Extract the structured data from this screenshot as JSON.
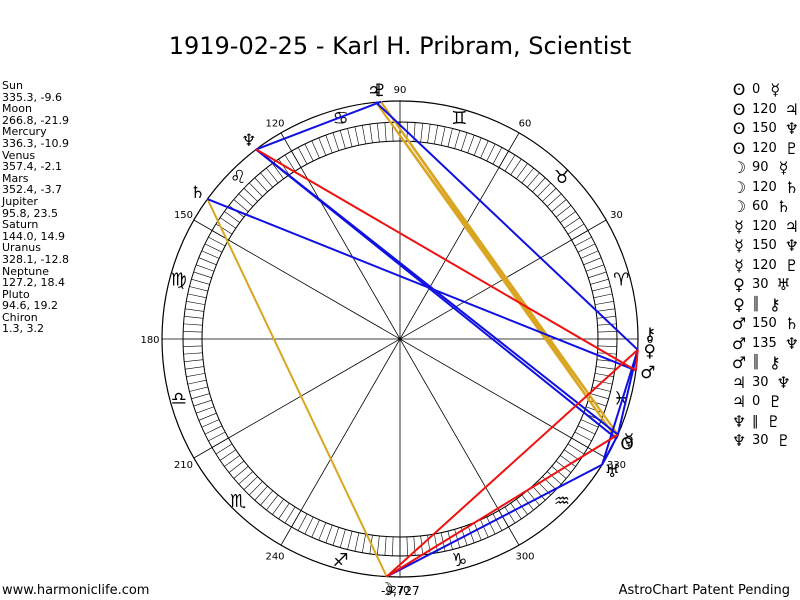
{
  "title": "1919-02-25 - Karl H. Pribram, Scientist",
  "planets": [
    {
      "name": "Sun",
      "coords": "335.3, -9.6",
      "glyph": "ʘ"
    },
    {
      "name": "Moon",
      "coords": "266.8, -21.9",
      "glyph": "☽"
    },
    {
      "name": "Mercury",
      "coords": "336.3, -10.9",
      "glyph": "☿"
    },
    {
      "name": "Venus",
      "coords": "357.4, -2.1",
      "glyph": "♀"
    },
    {
      "name": "Mars",
      "coords": "352.4, -3.7",
      "glyph": "♂"
    },
    {
      "name": "Jupiter",
      "coords": "95.8, 23.5",
      "glyph": "♃"
    },
    {
      "name": "Saturn",
      "coords": "144.0, 14.9",
      "glyph": "♄"
    },
    {
      "name": "Uranus",
      "coords": "328.1, -12.8",
      "glyph": "♅"
    },
    {
      "name": "Neptune",
      "coords": "127.2, 18.4",
      "glyph": "♆"
    },
    {
      "name": "Pluto",
      "coords": "94.6, 19.2",
      "glyph": "♇"
    },
    {
      "name": "Chiron",
      "coords": "1.3, 3.2",
      "glyph": "⚷"
    }
  ],
  "aspects": [
    {
      "p1": "ʘ",
      "value": "0",
      "p2": "☿"
    },
    {
      "p1": "ʘ",
      "value": "120",
      "p2": "♃"
    },
    {
      "p1": "ʘ",
      "value": "150",
      "p2": "♆"
    },
    {
      "p1": "ʘ",
      "value": "120",
      "p2": "♇"
    },
    {
      "p1": "☽",
      "value": "90",
      "p2": "☿"
    },
    {
      "p1": "☽",
      "value": "120",
      "p2": "♄"
    },
    {
      "p1": "☽",
      "value": "60",
      "p2": "♄"
    },
    {
      "p1": "☿",
      "value": "120",
      "p2": "♃"
    },
    {
      "p1": "☿",
      "value": "150",
      "p2": "♆"
    },
    {
      "p1": "☿",
      "value": "120",
      "p2": "♇"
    },
    {
      "p1": "♀",
      "value": "30",
      "p2": "♅"
    },
    {
      "p1": "♀",
      "value": "║",
      "p2": "⚷"
    },
    {
      "p1": "♂",
      "value": "150",
      "p2": "♄"
    },
    {
      "p1": "♂",
      "value": "135",
      "p2": "♆"
    },
    {
      "p1": "♂",
      "value": "║",
      "p2": "⚷"
    },
    {
      "p1": "♃",
      "value": "30",
      "p2": "♆"
    },
    {
      "p1": "♃",
      "value": "0",
      "p2": "♇"
    },
    {
      "p1": "♆",
      "value": "‖",
      "p2": "♇"
    },
    {
      "p1": "♆",
      "value": "30",
      "p2": "♇"
    }
  ],
  "wheel": {
    "degree_labels": [
      "0",
      "30",
      "60",
      "90",
      "120",
      "150",
      "180",
      "210",
      "240",
      "270",
      "300",
      "330"
    ],
    "signs": [
      "♈",
      "♉",
      "♊",
      "♋",
      "♌",
      "♍",
      "♎",
      "♏",
      "♐",
      "♑",
      "♒",
      "♓"
    ],
    "moon_marker": "-9,727"
  },
  "chart_planets": [
    {
      "key": "sun",
      "glyph": "ʘ",
      "lon": 335.3
    },
    {
      "key": "moon",
      "glyph": "☽",
      "lon": 266.8
    },
    {
      "key": "mercury",
      "glyph": "☿",
      "lon": 336.3
    },
    {
      "key": "venus",
      "glyph": "♀",
      "lon": 357.4
    },
    {
      "key": "mars",
      "glyph": "♂",
      "lon": 352.4
    },
    {
      "key": "jupiter",
      "glyph": "♃",
      "lon": 95.8
    },
    {
      "key": "saturn",
      "glyph": "♄",
      "lon": 144.0
    },
    {
      "key": "uranus",
      "glyph": "♅",
      "lon": 328.1
    },
    {
      "key": "neptune",
      "glyph": "♆",
      "lon": 127.2
    },
    {
      "key": "pluto",
      "glyph": "♇",
      "lon": 94.6
    },
    {
      "key": "chiron",
      "glyph": "⚷",
      "lon": 1.3
    }
  ],
  "aspect_lines": [
    {
      "a": "sun",
      "b": "jupiter",
      "color": "#daa520"
    },
    {
      "a": "mercury",
      "b": "jupiter",
      "color": "#daa520"
    },
    {
      "a": "sun",
      "b": "pluto",
      "color": "#daa520"
    },
    {
      "a": "mercury",
      "b": "pluto",
      "color": "#daa520"
    },
    {
      "a": "moon",
      "b": "saturn",
      "color": "#daa520"
    },
    {
      "a": "sun",
      "b": "neptune",
      "color": "#1010e0"
    },
    {
      "a": "mercury",
      "b": "neptune",
      "color": "#1010e0"
    },
    {
      "a": "mars",
      "b": "saturn",
      "color": "#1010e0"
    },
    {
      "a": "jupiter",
      "b": "venus",
      "color": "#1010e0"
    },
    {
      "a": "neptune",
      "b": "pluto",
      "color": "#1010e0"
    },
    {
      "a": "sun",
      "b": "mercury",
      "color": "#1010e0"
    },
    {
      "a": "moon",
      "b": "uranus",
      "color": "#1010e0"
    },
    {
      "a": "venus",
      "b": "uranus",
      "color": "#1010e0"
    },
    {
      "a": "uranus",
      "b": "mercury",
      "color": "#1010e0"
    },
    {
      "a": "venus",
      "b": "mercury",
      "color": "#1010e0"
    },
    {
      "a": "mars",
      "b": "neptune",
      "color": "#ee1111"
    },
    {
      "a": "moon",
      "b": "mercury",
      "color": "#ee1111"
    },
    {
      "a": "moon",
      "b": "venus",
      "color": "#ee1111"
    },
    {
      "a": "venus",
      "b": "mars",
      "color": "#ee1111"
    }
  ],
  "footer": {
    "left": "www.harmoniclife.com",
    "right": "AstroChart Patent Pending"
  }
}
